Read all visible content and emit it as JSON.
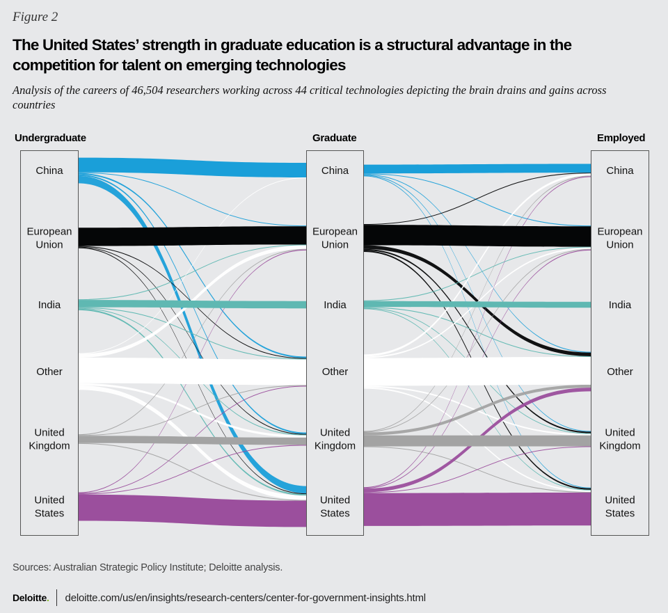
{
  "figure_label": "Figure 2",
  "title": "The United States’ strength in graduate education is a structural advantage in the competition for talent on emerging technologies",
  "subtitle": "Analysis of the careers of 46,504 researchers working across 44 critical technologies depicting the brain drains and gains across countries",
  "sources": "Sources: Australian Strategic Policy Institute; Deloitte analysis.",
  "footer": {
    "logo": "Deloitte",
    "logo_dot": ".",
    "url": "deloitte.com/us/en/insights/research-centers/center-for-government-insights.html"
  },
  "chart_data": {
    "type": "sankey",
    "title": "The United States’ strength in graduate education is a structural advantage in the competition for talent on emerging technologies",
    "stages": [
      "Undergraduate",
      "Graduate",
      "Employed"
    ],
    "nodes": [
      "China",
      "European Union",
      "India",
      "Other",
      "United Kingdom",
      "United States"
    ],
    "node_labels": [
      [
        "China"
      ],
      [
        "European",
        "Union"
      ],
      [
        "India"
      ],
      [
        "Other"
      ],
      [
        "United",
        "Kingdom"
      ],
      [
        "United",
        "States"
      ]
    ],
    "colors": {
      "China": "#1a9fd9",
      "European Union": "#050607",
      "India": "#5fb8b2",
      "Other": "#ffffff",
      "United Kingdom": "#a3a3a3",
      "United States": "#9b4f9d"
    },
    "units": "approximate relative share of researchers (estimated from band widths)",
    "flows_undergrad_to_graduate": [
      {
        "from": "China",
        "to": "China",
        "value": 20
      },
      {
        "from": "China",
        "to": "European Union",
        "value": 1
      },
      {
        "from": "China",
        "to": "Other",
        "value": 2
      },
      {
        "from": "China",
        "to": "United Kingdom",
        "value": 2
      },
      {
        "from": "China",
        "to": "United States",
        "value": 10
      },
      {
        "from": "European Union",
        "to": "European Union",
        "value": 25
      },
      {
        "from": "European Union",
        "to": "Other",
        "value": 1
      },
      {
        "from": "European Union",
        "to": "United Kingdom",
        "value": 1
      },
      {
        "from": "European Union",
        "to": "United States",
        "value": 1
      },
      {
        "from": "India",
        "to": "European Union",
        "value": 1
      },
      {
        "from": "India",
        "to": "India",
        "value": 10
      },
      {
        "from": "India",
        "to": "Other",
        "value": 1
      },
      {
        "from": "India",
        "to": "United Kingdom",
        "value": 1
      },
      {
        "from": "India",
        "to": "United States",
        "value": 2
      },
      {
        "from": "Other",
        "to": "China",
        "value": 1
      },
      {
        "from": "Other",
        "to": "European Union",
        "value": 5
      },
      {
        "from": "Other",
        "to": "Other",
        "value": 35
      },
      {
        "from": "Other",
        "to": "United Kingdom",
        "value": 3
      },
      {
        "from": "Other",
        "to": "United States",
        "value": 6
      },
      {
        "from": "United Kingdom",
        "to": "European Union",
        "value": 1
      },
      {
        "from": "United Kingdom",
        "to": "Other",
        "value": 1
      },
      {
        "from": "United Kingdom",
        "to": "United Kingdom",
        "value": 10
      },
      {
        "from": "United Kingdom",
        "to": "United States",
        "value": 1
      },
      {
        "from": "United States",
        "to": "European Union",
        "value": 1
      },
      {
        "from": "United States",
        "to": "Other",
        "value": 1
      },
      {
        "from": "United States",
        "to": "United Kingdom",
        "value": 1
      },
      {
        "from": "United States",
        "to": "United States",
        "value": 36
      }
    ],
    "flows_graduate_to_employed": [
      {
        "from": "China",
        "to": "China",
        "value": 12
      },
      {
        "from": "China",
        "to": "European Union",
        "value": 1
      },
      {
        "from": "China",
        "to": "Other",
        "value": 1
      },
      {
        "from": "China",
        "to": "United Kingdom",
        "value": 1
      },
      {
        "from": "China",
        "to": "United States",
        "value": 1
      },
      {
        "from": "European Union",
        "to": "China",
        "value": 1
      },
      {
        "from": "European Union",
        "to": "European Union",
        "value": 28
      },
      {
        "from": "European Union",
        "to": "Other",
        "value": 5
      },
      {
        "from": "European Union",
        "to": "United Kingdom",
        "value": 2
      },
      {
        "from": "European Union",
        "to": "United States",
        "value": 2
      },
      {
        "from": "India",
        "to": "European Union",
        "value": 1
      },
      {
        "from": "India",
        "to": "India",
        "value": 8
      },
      {
        "from": "India",
        "to": "Other",
        "value": 1
      },
      {
        "from": "India",
        "to": "United Kingdom",
        "value": 1
      },
      {
        "from": "India",
        "to": "United States",
        "value": 1
      },
      {
        "from": "Other",
        "to": "China",
        "value": 3
      },
      {
        "from": "Other",
        "to": "European Union",
        "value": 2
      },
      {
        "from": "Other",
        "to": "Other",
        "value": 38
      },
      {
        "from": "Other",
        "to": "United Kingdom",
        "value": 2
      },
      {
        "from": "Other",
        "to": "United States",
        "value": 2
      },
      {
        "from": "United Kingdom",
        "to": "China",
        "value": 1
      },
      {
        "from": "United Kingdom",
        "to": "European Union",
        "value": 1
      },
      {
        "from": "United Kingdom",
        "to": "Other",
        "value": 4
      },
      {
        "from": "United Kingdom",
        "to": "United Kingdom",
        "value": 15
      },
      {
        "from": "United Kingdom",
        "to": "United States",
        "value": 1
      },
      {
        "from": "United States",
        "to": "China",
        "value": 1
      },
      {
        "from": "United States",
        "to": "European Union",
        "value": 1
      },
      {
        "from": "United States",
        "to": "Other",
        "value": 5
      },
      {
        "from": "United States",
        "to": "United Kingdom",
        "value": 1
      },
      {
        "from": "United States",
        "to": "United States",
        "value": 45
      }
    ]
  }
}
